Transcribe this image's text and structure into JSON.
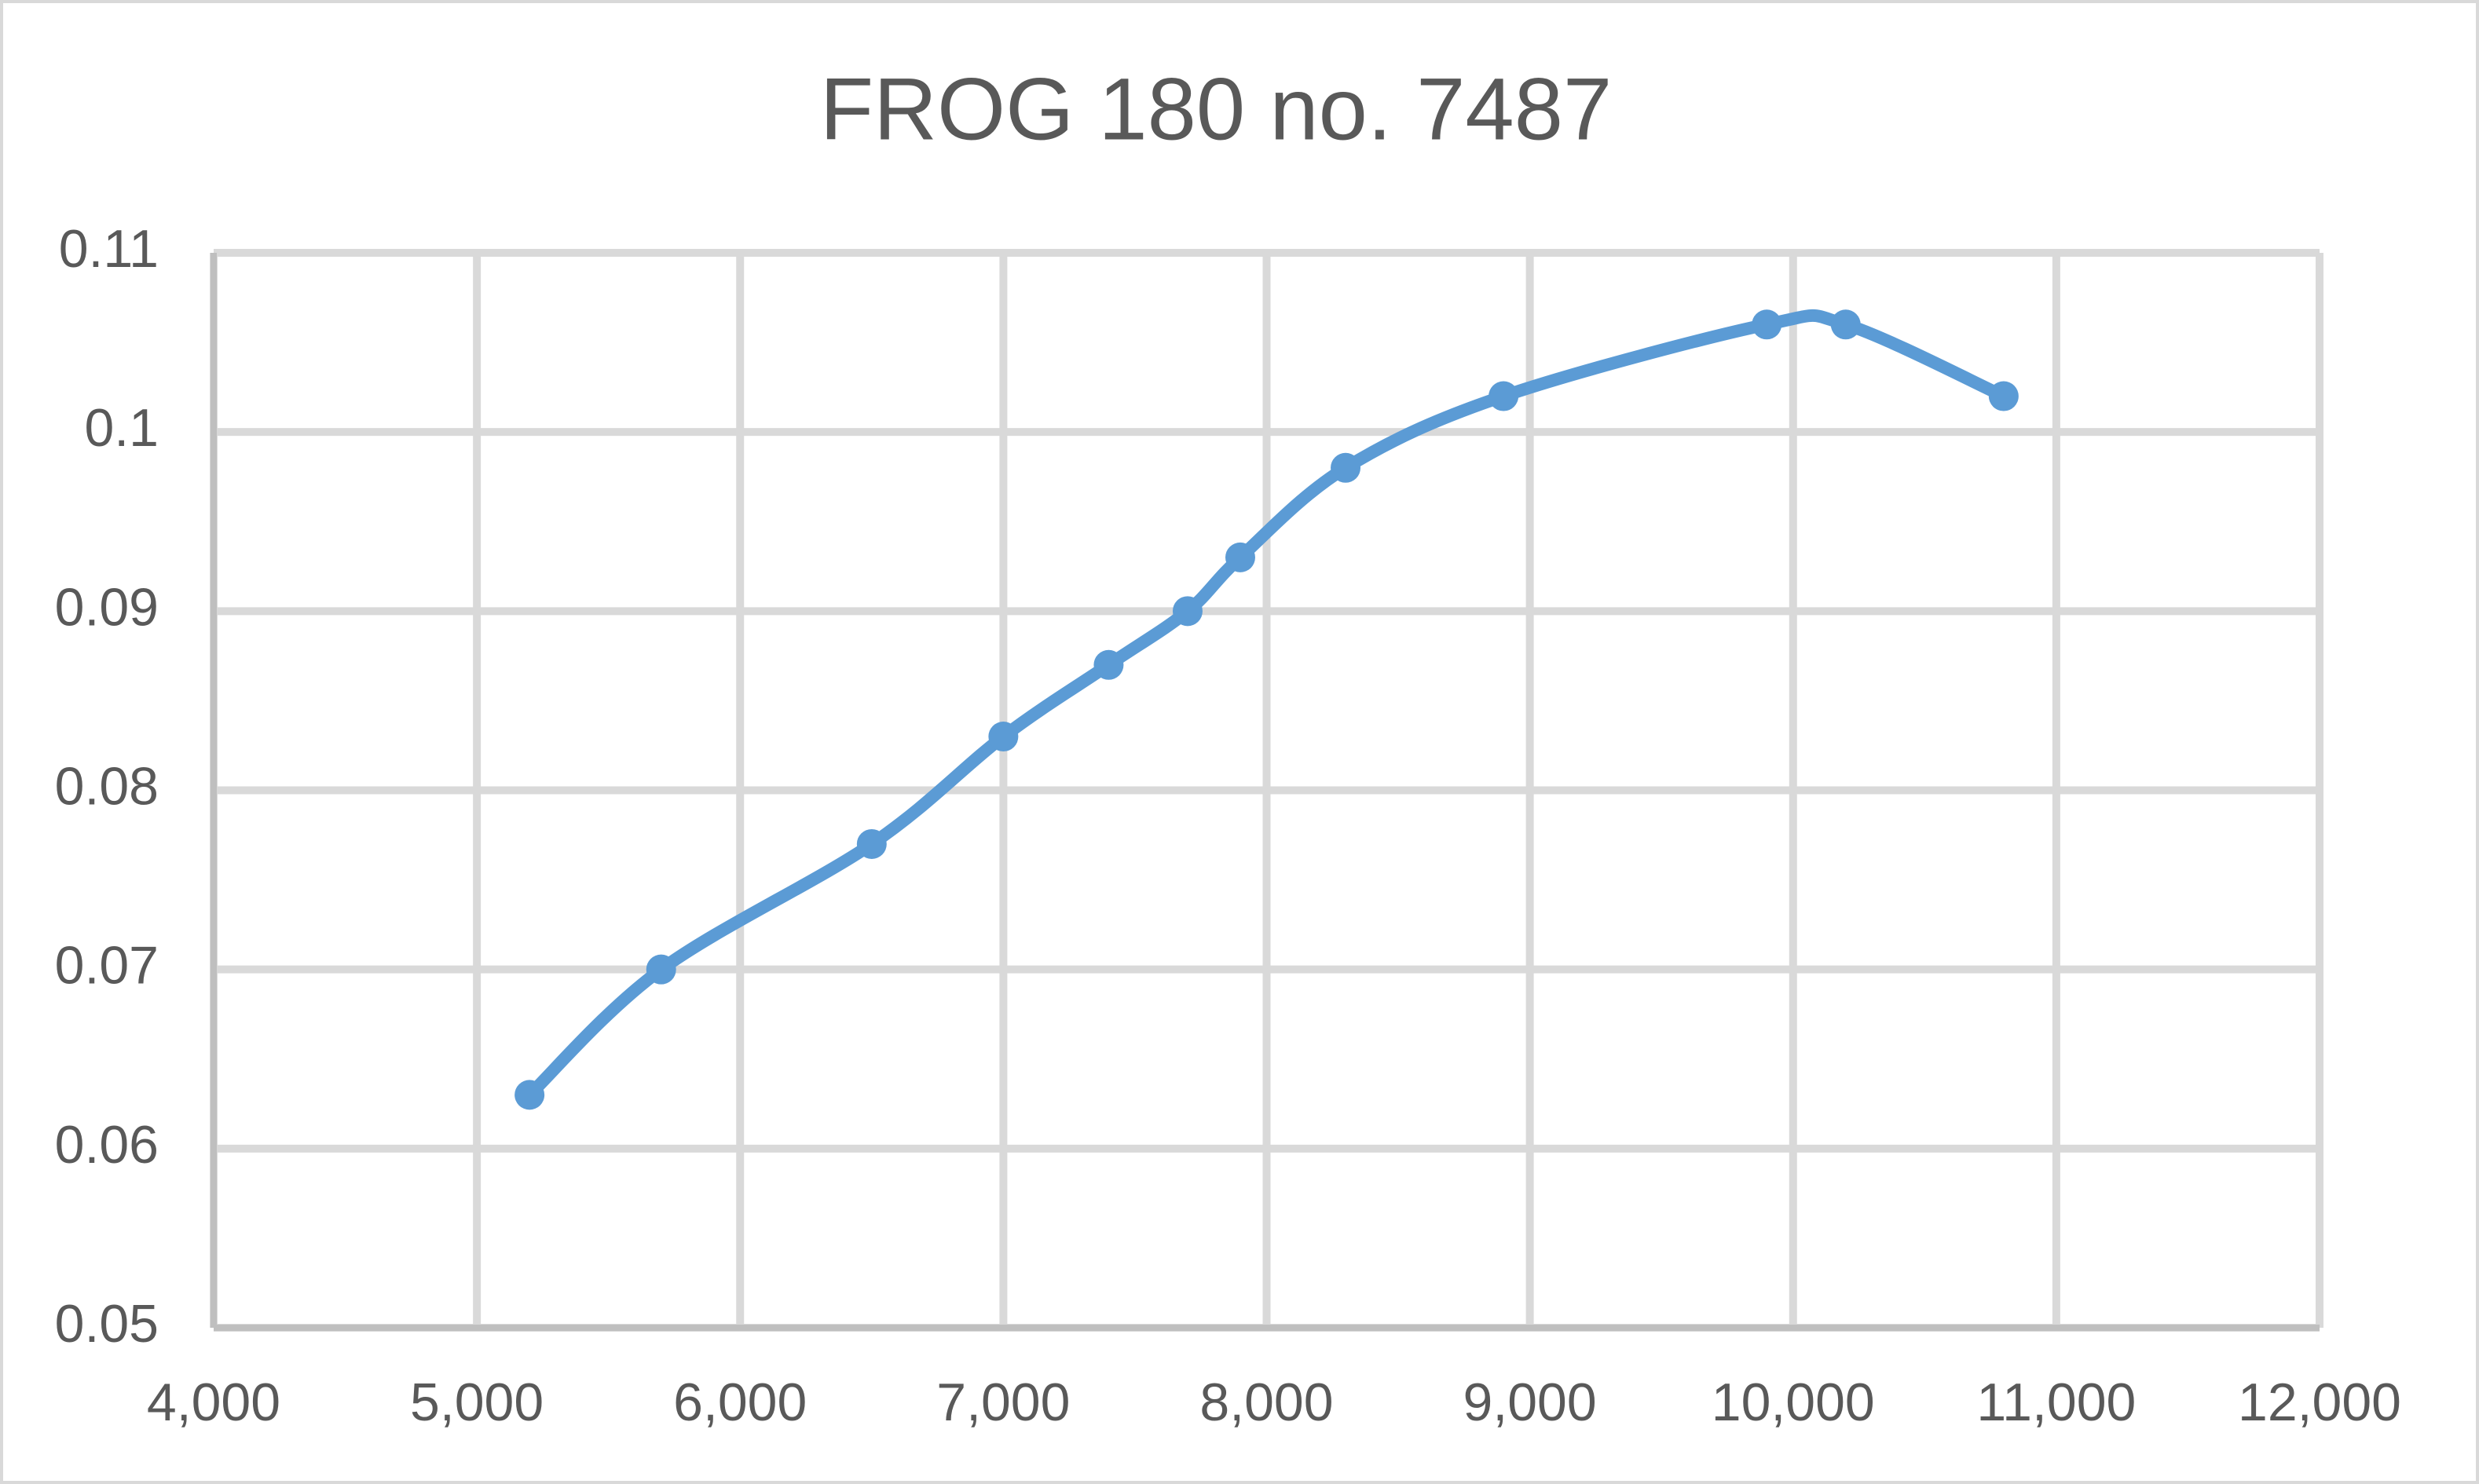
{
  "chart_data": {
    "type": "scatter",
    "title": "FROG 180 no. 7487",
    "x": [
      5200,
      5700,
      6500,
      7000,
      7400,
      7700,
      7900,
      8300,
      8900,
      9900,
      10200,
      10800
    ],
    "series": [
      {
        "color": "#5b9bd5",
        "values": [
          0.063,
          0.07,
          0.077,
          0.083,
          0.087,
          0.09,
          0.093,
          0.098,
          0.102,
          0.106,
          0.106,
          0.102
        ]
      }
    ],
    "xlim": [
      4000,
      12000
    ],
    "xticks": [
      {
        "value": 4000,
        "label": "4,000"
      },
      {
        "value": 5000,
        "label": "5,000"
      },
      {
        "value": 6000,
        "label": "6,000"
      },
      {
        "value": 7000,
        "label": "7,000"
      },
      {
        "value": 8000,
        "label": "8,000"
      },
      {
        "value": 9000,
        "label": "9,000"
      },
      {
        "value": 10000,
        "label": "10,000"
      },
      {
        "value": 11000,
        "label": "11,000"
      },
      {
        "value": 12000,
        "label": "12,000"
      }
    ],
    "ylim": [
      0.05,
      0.11
    ],
    "yticks": [
      0.05,
      0.06,
      0.07,
      0.08,
      0.09,
      0.1,
      0.11
    ],
    "grid": true,
    "smooth": true
  }
}
